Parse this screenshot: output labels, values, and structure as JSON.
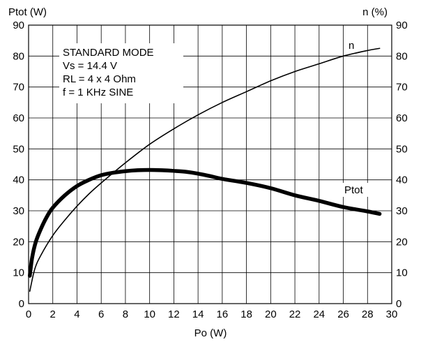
{
  "chart_data": {
    "type": "line",
    "xlabel": "Po (W)",
    "ylabel_left": "Ptot (W)",
    "ylabel_right": "n (%)",
    "xlim": [
      0,
      30
    ],
    "ylim": [
      0,
      90
    ],
    "x_ticks": [
      "0",
      "2",
      "4",
      "6",
      "8",
      "10",
      "12",
      "14",
      "16",
      "18",
      "20",
      "22",
      "24",
      "26",
      "28",
      "30"
    ],
    "y_ticks": [
      "0",
      "10",
      "20",
      "30",
      "40",
      "50",
      "60",
      "70",
      "80",
      "90"
    ],
    "grid": true,
    "annotation_lines": [
      "STANDARD MODE",
      "Vs = 14.4 V",
      "RL = 4 x 4 Ohm",
      "f = 1 KHz SINE"
    ],
    "series": [
      {
        "name": "Ptot",
        "axis": "left",
        "color": "#000000",
        "x": [
          0.1,
          0.3,
          0.6,
          1,
          1.5,
          2,
          3,
          4,
          5,
          6,
          7,
          8,
          9,
          10,
          11,
          12,
          13,
          14,
          15,
          16,
          18,
          20,
          22,
          24,
          26,
          28,
          29
        ],
        "y": [
          9,
          15,
          20,
          24,
          28,
          31,
          35,
          38,
          40,
          41.5,
          42.3,
          42.8,
          43.1,
          43.2,
          43.1,
          42.9,
          42.6,
          42,
          41.2,
          40.3,
          39,
          37.3,
          35,
          33.2,
          31.2,
          29.8,
          29
        ]
      },
      {
        "name": "n",
        "axis": "right",
        "color": "#000000",
        "x": [
          0.1,
          0.5,
          1,
          2,
          3,
          4,
          5,
          6,
          8,
          10,
          12,
          14,
          16,
          18,
          20,
          22,
          24,
          26,
          28,
          29
        ],
        "y": [
          4,
          11,
          15.5,
          22,
          27,
          31.5,
          35.5,
          39,
          45.5,
          51.5,
          56.5,
          61,
          65,
          68.5,
          72,
          75,
          77.5,
          80,
          81.8,
          82.5
        ]
      }
    ]
  }
}
